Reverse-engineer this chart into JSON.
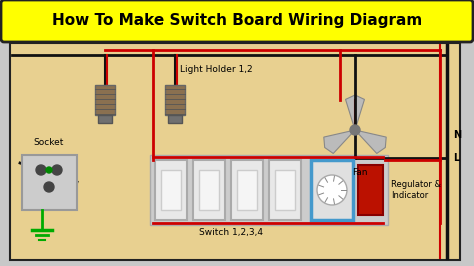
{
  "title": "How To Make Switch Board Wiring Diagram",
  "title_bg": "#FFFF00",
  "title_color": "#000000",
  "outer_bg": "#C8C8C8",
  "diagram_bg": "#E8D090",
  "border_color": "#222222",
  "wire_red": "#CC0000",
  "wire_black": "#111111",
  "wire_green": "#00AA00",
  "wire_blue": "#4499CC",
  "switch_color": "#DDDDDD",
  "socket_bg": "#CCCCCC",
  "regulator_color": "#BB1100",
  "label_light": "Light Holder 1,2",
  "label_fan": "Fan",
  "label_socket": "Socket",
  "label_switch": "Switch 1,2,3,4",
  "label_regulator": "Regulator &\nIndicator",
  "label_N": "N",
  "label_L": "L",
  "figsize": [
    4.74,
    2.66
  ],
  "dpi": 100
}
